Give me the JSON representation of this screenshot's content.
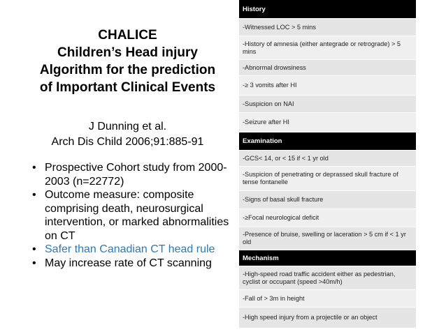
{
  "title": {
    "line1": "CHALICE",
    "line2": "Children’s Head injury",
    "line3": "Algorithm for the prediction",
    "line4": "of Important Clinical Events"
  },
  "citation": {
    "authors": "J Dunning et al.",
    "journal": "Arch Dis Child 2006;91:885-91"
  },
  "bullets": [
    "Prospective Cohort study from 2000-2003 (n=22772)",
    "Outcome measure: composite comprising death, neurosurgical intervention, or marked abnormalities on CT",
    "Safer than Canadian CT head rule",
    "May increase rate of CT scanning"
  ],
  "table": {
    "sections": [
      {
        "header": "History",
        "rows": [
          "-Witnessed LOC > 5 mins",
          "-History of amnesia (either antegrade or retrograde) > 5 mins",
          "-Abnormal drowsiness",
          "-≥ 3 vomits after HI",
          "-Suspicion on NAI",
          "-Seizure after HI"
        ]
      },
      {
        "header": "Examination",
        "rows": [
          "-GCS< 14, or < 15 if < 1 yr old",
          "-Suspicion of penetrating or deprassed skull fracture  of tense fontanelle",
          "-Signs of basal skull fracture",
          "-≥Focal neurological deficit",
          "-Presence of bruise, swelling or laceration > 5 cm if < 1 yr old"
        ]
      },
      {
        "header": "Mechanism",
        "rows": [
          "-High-speed road traffic accident either as pedestrian, cyclist or occupant (speed >40m/h)",
          "-Fall of > 3m in height",
          "-High speed injury from a projectile or an object"
        ]
      }
    ]
  }
}
